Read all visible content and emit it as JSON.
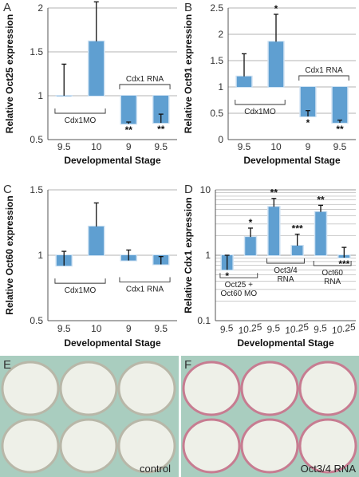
{
  "colors": {
    "bar": "#5f9fd1",
    "bar_edge": "#cfe2f3",
    "grid": "#9a9a9a",
    "axis": "#555555",
    "error": "#111111",
    "plate_bg": "#a9cdbf",
    "well_fill": "#eef0e8",
    "well_edge_control": "#b8b7a8",
    "well_edge_treated": "#c77c91"
  },
  "chart_data": [
    {
      "panel": "A",
      "type": "bar",
      "ylabel": "Relative Oct25 expression",
      "xlabel": "Developmental Stage",
      "ylim": [
        0.5,
        2
      ],
      "yticks": [
        "0.5",
        "1",
        "1.5",
        "2"
      ],
      "categories": [
        "9.5",
        "10",
        "9",
        "9.5"
      ],
      "values": [
        1.0,
        1.62,
        0.68,
        0.69
      ],
      "error_up": [
        0.36,
        0.45,
        0.02,
        0.1
      ],
      "significance": [
        "",
        "*",
        "**",
        "**"
      ],
      "brackets": [
        {
          "label": "Cdx1MO",
          "from": 0,
          "to": 1,
          "pos": "below"
        },
        {
          "label": "Cdx1 RNA",
          "from": 2,
          "to": 3,
          "pos": "above"
        }
      ]
    },
    {
      "panel": "B",
      "type": "bar",
      "ylabel": "Relative Oct91 expression",
      "xlabel": "Developmental Stage",
      "ylim": [
        0,
        2.5
      ],
      "yticks": [
        "0",
        "0.5",
        "1",
        "1.5",
        "2",
        "2.5"
      ],
      "categories": [
        "9.5",
        "10",
        "9",
        "9.5"
      ],
      "values": [
        1.2,
        1.86,
        0.44,
        0.32
      ],
      "error_up": [
        0.43,
        0.52,
        0.11,
        0.05
      ],
      "significance": [
        "",
        "*",
        "*",
        "**"
      ],
      "brackets": [
        {
          "label": "Cdx1MO",
          "from": 0,
          "to": 1,
          "pos": "below"
        },
        {
          "label": "Cdx1 RNA",
          "from": 2,
          "to": 3,
          "pos": "above"
        }
      ]
    },
    {
      "panel": "C",
      "type": "bar",
      "ylabel": "Relative Oct60 expression",
      "xlabel": "Developmental Stage",
      "ylim": [
        0.5,
        1.5
      ],
      "yticks": [
        "0.5",
        "1",
        "1.5"
      ],
      "categories": [
        "9.5",
        "10",
        "9",
        "9.5"
      ],
      "values": [
        0.92,
        1.22,
        0.96,
        0.93
      ],
      "error_up": [
        0.11,
        0.18,
        0.08,
        0.06
      ],
      "significance": [
        "",
        "",
        "",
        ""
      ],
      "brackets": [
        {
          "label": "Cdx1MO",
          "from": 0,
          "to": 1,
          "pos": "below"
        },
        {
          "label": "Cdx1 RNA",
          "from": 2,
          "to": 3,
          "pos": "below"
        }
      ]
    },
    {
      "panel": "D",
      "type": "bar",
      "yscale": "log",
      "ylabel": "Relative Cdx1 expression",
      "xlabel": "Developmental Stage",
      "ylim": [
        0.1,
        10
      ],
      "yticks": [
        "0.1",
        "1",
        "10"
      ],
      "categories": [
        "9.5",
        "10.25",
        "9.5",
        "10.25",
        "9.5",
        "10.25"
      ],
      "values": [
        0.6,
        1.9,
        5.5,
        1.4,
        4.6,
        0.92
      ],
      "error_up": [
        0.4,
        0.7,
        1.9,
        0.7,
        1.2,
        0.4
      ],
      "significance": [
        "*",
        "*",
        "**",
        "***",
        "**",
        "***"
      ],
      "brackets": [
        {
          "label": "Oct25 + Oct60 MO",
          "from": 0,
          "to": 1,
          "pos": "below"
        },
        {
          "label": "Oct3/4 RNA",
          "from": 2,
          "to": 3,
          "pos": "below"
        },
        {
          "label": "Oct60 RNA",
          "from": 4,
          "to": 5,
          "pos": "below"
        }
      ]
    }
  ],
  "photos": [
    {
      "panel": "E",
      "caption": "control"
    },
    {
      "panel": "F",
      "caption": "Oct3/4 RNA"
    }
  ]
}
